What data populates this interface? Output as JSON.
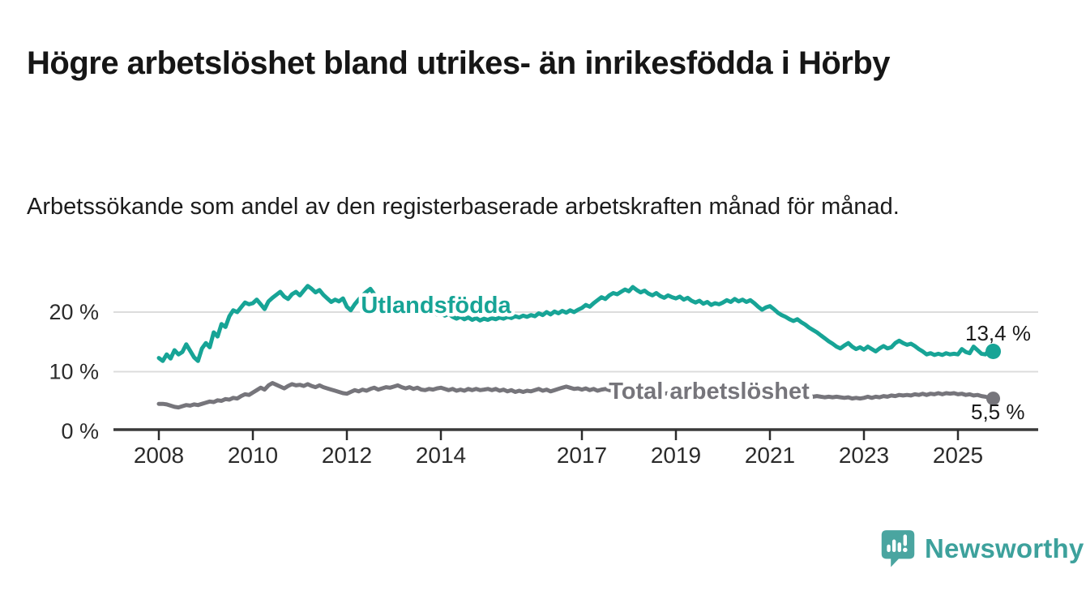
{
  "header": {
    "title": "Högre arbetslöshet bland utrikes- än inrikesfödda i Hörby",
    "subtitle": "Arbetssökande som andel av den registerbaserade arbetskraften månad för månad."
  },
  "branding": {
    "logo_text": "Newsworthy",
    "logo_icon": "bar-chart-speech-bubble-icon",
    "logo_bubble_color": "#4aa5a0",
    "logo_text_color": "#3da19c"
  },
  "chart_data": {
    "type": "line",
    "title": "",
    "x_axis": {
      "start_year": 2008.0,
      "step_years": 0.0833333,
      "tick_labels": [
        "2008",
        "2010",
        "2012",
        "2014",
        "2017",
        "2019",
        "2021",
        "2023",
        "2025"
      ]
    },
    "y_axis": {
      "tick_labels": [
        "0 %",
        "10 %",
        "20 %"
      ],
      "range": [
        0,
        26
      ]
    },
    "grid": "horizontal",
    "colors": {
      "gridline": "#dcdcdc",
      "axis": "#3a3a3a",
      "axis_text": "#2b2b2b",
      "annotation_text": "#1a1a1a"
    },
    "series": [
      {
        "name": "Utlandsfödda",
        "color": "#17a496",
        "end_value": 13.4,
        "end_value_label": "13,4 %",
        "values": [
          12.3,
          11.8,
          12.9,
          12.2,
          13.6,
          12.9,
          13.3,
          14.6,
          13.5,
          12.4,
          11.8,
          13.9,
          14.8,
          14.1,
          16.6,
          15.9,
          18.0,
          17.5,
          19.3,
          20.3,
          20.0,
          20.8,
          21.6,
          21.3,
          21.5,
          22.1,
          21.3,
          20.5,
          21.8,
          22.4,
          22.9,
          23.4,
          22.6,
          22.2,
          23.0,
          23.4,
          22.8,
          23.6,
          24.4,
          23.9,
          23.3,
          23.7,
          22.9,
          22.3,
          21.7,
          22.1,
          21.8,
          22.3,
          20.9,
          20.3,
          21.3,
          22.1,
          22.8,
          23.4,
          23.9,
          23.0,
          22.2,
          21.5,
          21.0,
          20.7,
          20.9,
          20.4,
          20.7,
          20.2,
          20.5,
          20.0,
          20.3,
          19.8,
          20.1,
          19.7,
          20.0,
          19.6,
          19.8,
          19.4,
          19.7,
          19.2,
          18.9,
          19.2,
          18.8,
          19.1,
          18.7,
          19.0,
          18.6,
          18.9,
          18.7,
          19.0,
          18.8,
          19.1,
          18.9,
          19.2,
          19.0,
          19.3,
          19.1,
          19.4,
          19.2,
          19.5,
          19.3,
          19.8,
          19.5,
          20.0,
          19.6,
          20.1,
          19.8,
          20.2,
          19.9,
          20.3,
          20.0,
          20.4,
          20.7,
          21.2,
          20.9,
          21.5,
          22.0,
          22.5,
          22.2,
          22.8,
          23.2,
          23.0,
          23.4,
          23.8,
          23.5,
          24.2,
          23.7,
          23.3,
          23.6,
          23.1,
          22.8,
          23.2,
          22.7,
          22.4,
          22.8,
          22.5,
          22.3,
          22.6,
          22.1,
          22.4,
          21.9,
          21.6,
          21.9,
          21.4,
          21.7,
          21.2,
          21.5,
          21.3,
          21.6,
          22.0,
          21.7,
          22.2,
          21.8,
          22.1,
          21.7,
          22.0,
          21.5,
          20.9,
          20.4,
          20.8,
          21.0,
          20.5,
          19.9,
          19.5,
          19.2,
          18.8,
          18.5,
          18.8,
          18.3,
          17.9,
          17.4,
          17.0,
          16.6,
          16.1,
          15.6,
          15.1,
          14.7,
          14.2,
          13.9,
          14.4,
          14.8,
          14.2,
          13.8,
          14.1,
          13.7,
          14.2,
          13.8,
          13.4,
          13.9,
          14.3,
          13.9,
          14.1,
          14.8,
          15.2,
          14.8,
          14.5,
          14.7,
          14.3,
          13.8,
          13.4,
          12.9,
          13.1,
          12.8,
          13.0,
          12.8,
          13.1,
          12.9,
          13.0,
          12.9,
          13.8,
          13.3,
          13.1,
          14.2,
          13.6,
          13.0,
          12.9,
          13.6,
          13.4
        ]
      },
      {
        "name": "Total arbetslöshet",
        "color": "#76757b",
        "end_value": 5.5,
        "end_value_label": "5,5 %",
        "values": [
          4.6,
          4.6,
          4.5,
          4.3,
          4.1,
          4.0,
          4.2,
          4.4,
          4.3,
          4.5,
          4.4,
          4.6,
          4.8,
          5.0,
          4.9,
          5.2,
          5.1,
          5.4,
          5.3,
          5.6,
          5.5,
          5.9,
          6.2,
          6.1,
          6.5,
          6.9,
          7.3,
          7.0,
          7.7,
          8.1,
          7.8,
          7.5,
          7.2,
          7.6,
          7.9,
          7.7,
          7.8,
          7.6,
          7.9,
          7.6,
          7.4,
          7.7,
          7.4,
          7.2,
          7.0,
          6.8,
          6.6,
          6.4,
          6.3,
          6.6,
          6.9,
          6.7,
          7.0,
          6.8,
          7.1,
          7.3,
          7.0,
          7.2,
          7.4,
          7.3,
          7.5,
          7.7,
          7.4,
          7.2,
          7.4,
          7.1,
          7.3,
          7.0,
          6.9,
          7.1,
          7.0,
          7.2,
          7.3,
          7.1,
          6.9,
          7.1,
          6.8,
          7.0,
          6.8,
          7.1,
          6.9,
          7.1,
          6.9,
          7.0,
          7.1,
          6.9,
          7.1,
          6.8,
          7.0,
          6.7,
          6.9,
          6.6,
          6.8,
          6.6,
          6.8,
          6.7,
          6.9,
          7.1,
          6.8,
          7.0,
          6.7,
          6.9,
          7.1,
          7.3,
          7.5,
          7.3,
          7.1,
          7.2,
          7.0,
          7.2,
          6.9,
          7.1,
          6.8,
          7.0,
          7.1,
          6.9,
          6.8,
          6.9,
          6.7,
          6.8,
          6.9,
          6.7,
          6.8,
          6.6,
          6.7,
          6.5,
          6.6,
          6.4,
          6.5,
          6.3,
          6.4,
          6.3,
          6.4,
          6.2,
          6.3,
          6.1,
          6.2,
          6.3,
          6.2,
          6.4,
          6.3,
          6.5,
          6.4,
          6.6,
          6.5,
          6.7,
          6.8,
          6.9,
          6.8,
          6.7,
          6.8,
          6.6,
          6.5,
          6.4,
          6.5,
          6.3,
          6.4,
          6.2,
          6.3,
          6.1,
          6.2,
          6.0,
          6.1,
          5.9,
          6.0,
          5.8,
          5.9,
          5.8,
          5.9,
          5.8,
          5.7,
          5.8,
          5.7,
          5.8,
          5.7,
          5.6,
          5.7,
          5.5,
          5.6,
          5.5,
          5.6,
          5.8,
          5.6,
          5.8,
          5.7,
          5.9,
          5.8,
          6.0,
          5.9,
          6.1,
          6.0,
          6.1,
          6.0,
          6.2,
          6.1,
          6.3,
          6.1,
          6.3,
          6.2,
          6.4,
          6.2,
          6.4,
          6.3,
          6.4,
          6.2,
          6.3,
          6.1,
          6.2,
          6.0,
          6.1,
          5.9,
          5.8,
          5.6,
          5.5
        ]
      }
    ]
  }
}
